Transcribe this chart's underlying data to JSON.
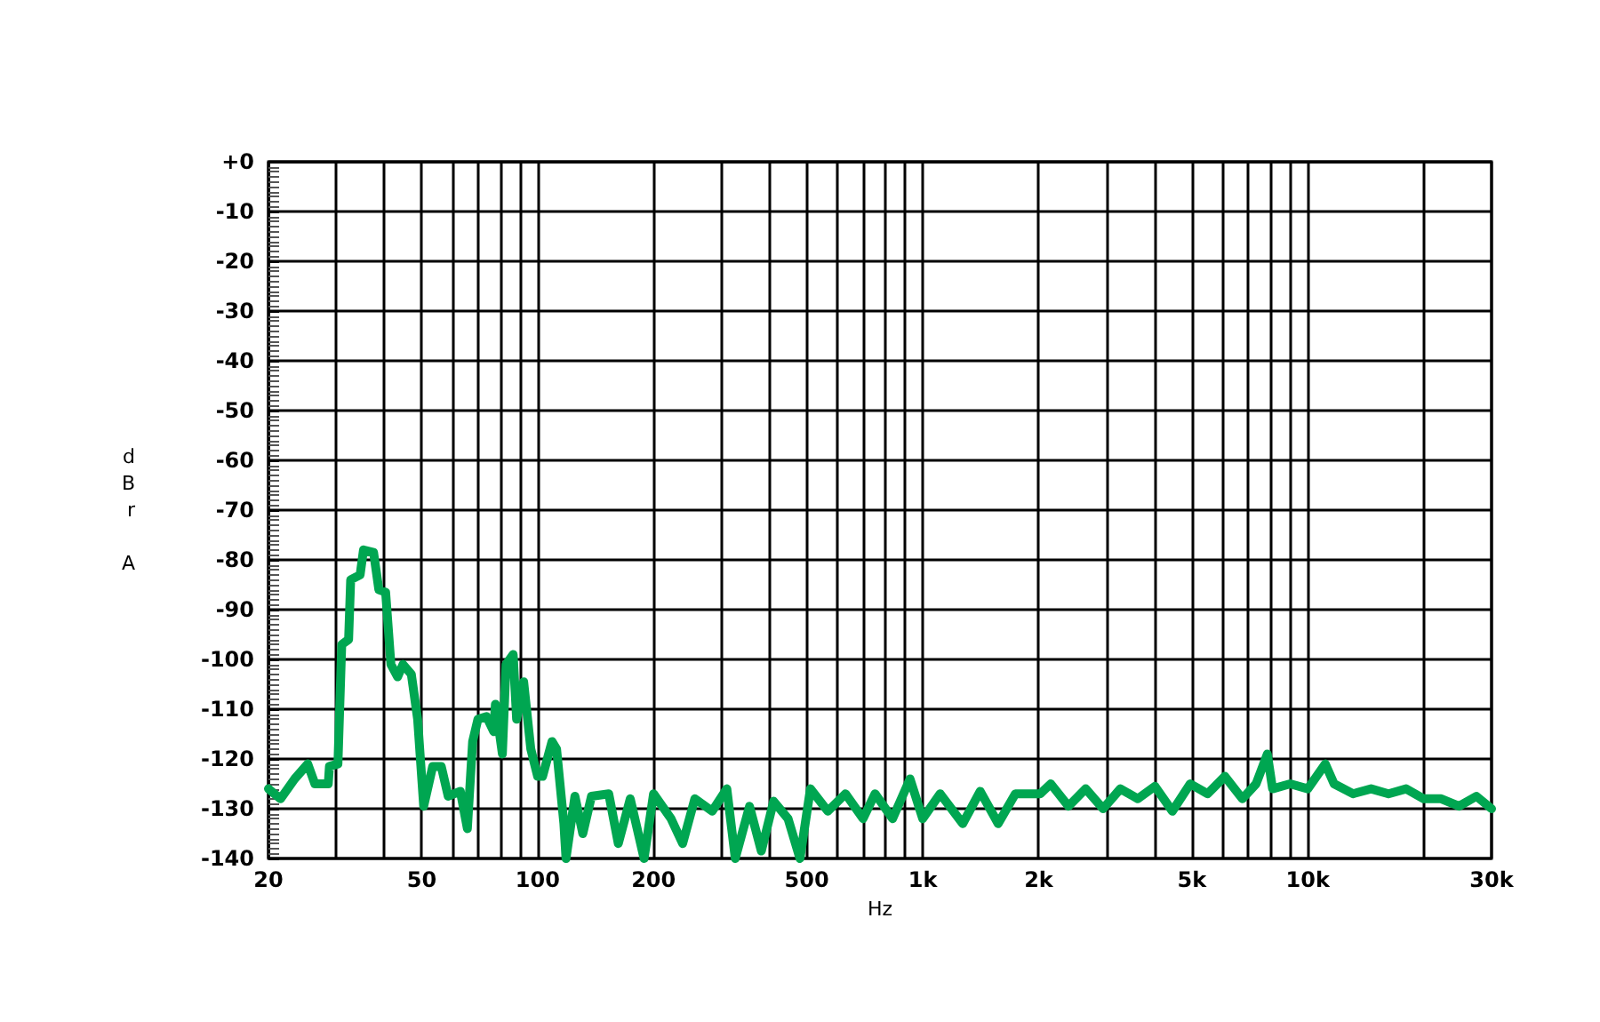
{
  "chart_data": {
    "type": "line",
    "xlabel": "Hz",
    "ylabel": "dBr A",
    "log": "x",
    "grid": true,
    "marker": "none",
    "line_style": "solid",
    "xlim": [
      20,
      30000
    ],
    "xticks": [
      20,
      {
        "value": 30,
        "label": null
      },
      {
        "value": 40,
        "label": null
      },
      50,
      {
        "value": 60,
        "label": null
      },
      {
        "value": 70,
        "label": null
      },
      {
        "value": 80,
        "label": null
      },
      {
        "value": 90,
        "label": null
      },
      100,
      200,
      {
        "value": 300,
        "label": null
      },
      {
        "value": 400,
        "label": null
      },
      500,
      {
        "value": 600,
        "label": null
      },
      {
        "value": 700,
        "label": null
      },
      {
        "value": 800,
        "label": null
      },
      {
        "value": 900,
        "label": null
      },
      {
        "value": 1000,
        "label": "1k"
      },
      {
        "value": 2000,
        "label": "2k"
      },
      {
        "value": 3000,
        "label": null
      },
      {
        "value": 4000,
        "label": null
      },
      {
        "value": 5000,
        "label": "5k"
      },
      {
        "value": 6000,
        "label": null
      },
      {
        "value": 7000,
        "label": null
      },
      {
        "value": 8000,
        "label": null
      },
      {
        "value": 9000,
        "label": null
      },
      {
        "value": 10000,
        "label": "10k"
      },
      {
        "value": 20000,
        "label": null
      },
      {
        "value": 30000,
        "label": "30k"
      }
    ],
    "ylim": [
      -140,
      0
    ],
    "yticks": [
      {
        "value": 0,
        "label": "+0"
      },
      -10,
      -20,
      -30,
      -40,
      -50,
      -60,
      -70,
      -80,
      -90,
      -100,
      -110,
      -120,
      -130,
      -140
    ],
    "series": [
      {
        "color": "#00a651",
        "x": [
          20,
          21.5,
          23.4,
          25.3,
          26.4,
          28.6,
          28.8,
          30.3,
          31,
          32.3,
          32.7,
          34.6,
          35.3,
          37.5,
          38.7,
          40.3,
          41.6,
          43.3,
          44.7,
          47,
          48.8,
          50.6,
          53.4,
          56.2,
          58.6,
          63,
          65.7,
          67.8,
          70,
          73.7,
          76.9,
          77.7,
          81,
          82.8,
          86.4,
          88.2,
          92,
          96,
          100,
          103,
          109,
          112,
          117,
          118.5,
          125,
          131,
          138,
          153,
          162,
          174,
          189,
          200,
          222,
          238,
          256,
          284,
          310,
          326,
          355,
          381,
          410,
          447,
          480,
          511,
          567,
          630,
          700,
          752,
          835,
          927,
          1000,
          1110,
          1270,
          1410,
          1570,
          1740,
          2020,
          2150,
          2390,
          2650,
          2940,
          3260,
          3620,
          4010,
          4450,
          4950,
          5490,
          6090,
          6760,
          7340,
          7850,
          8100,
          9000,
          10000,
          11100,
          11700,
          13100,
          14600,
          16200,
          18000,
          20000,
          22200,
          24700,
          27400,
          30000
        ],
        "values": [
          -126,
          -128,
          -124,
          -121,
          -125,
          -125,
          -121.5,
          -121,
          -97,
          -96,
          -84,
          -83,
          -78,
          -78.5,
          -86,
          -86.5,
          -101,
          -103.5,
          -101,
          -103,
          -112,
          -129.5,
          -121.5,
          -121.5,
          -127.5,
          -126.5,
          -134,
          -116.5,
          -112,
          -111.5,
          -114.5,
          -109,
          -119,
          -101,
          -99,
          -112,
          -104.5,
          -118,
          -123.5,
          -123.5,
          -116.5,
          -118,
          -133,
          -140,
          -127.5,
          -135,
          -127.5,
          -127,
          -137,
          -128,
          -140,
          -127,
          -132,
          -137,
          -128,
          -130.5,
          -126,
          -140,
          -129.5,
          -138.5,
          -128.5,
          -132,
          -140,
          -126,
          -130.5,
          -127,
          -132,
          -127,
          -132,
          -124,
          -132,
          -127,
          -133,
          -126.5,
          -133,
          -127,
          -127,
          -125,
          -129.5,
          -126,
          -130,
          -126,
          -128,
          -125.5,
          -130.5,
          -125,
          -127,
          -123.5,
          -128,
          -125,
          -119,
          -126,
          -125,
          -126,
          -121,
          -125,
          -127,
          -126,
          -127,
          -126,
          -128,
          -128,
          -129.5,
          -127.5,
          -130
        ]
      }
    ]
  }
}
